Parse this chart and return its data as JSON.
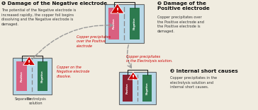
{
  "bg_color": "#f0ece0",
  "title1": "❶ Damage of the Negative electrode",
  "desc1": "The potential of the Negative electrode is\nincreased rapidly, the copper foil begins\ndissolving and the Negative electrode is\ndamaged.",
  "title2": "❷ Damage of the\nPositive electrode",
  "desc2": "Copper precipitates over\nthe Positive electrode and\nthe Positive electrode is\ndamaged.",
  "title3": "❸ Internal short causes",
  "desc3": "Copper precipitates in the\nelectrolysis solution and\ninternal short causes.",
  "ann1": "Copper on the\nNegative electrode\ndissolve.",
  "ann2": "Copper precipitates\nover the Positive\nelectrode",
  "ann3": "Copper precipitates\nin the Electrolysis solution.",
  "label_sep": "Separator",
  "label_elec": "Electrolysis\nsolution",
  "red": "#cc0000",
  "pink": "#d96080",
  "green": "#2d7a4f",
  "light_blue": "#b8d8e8",
  "dark_red": "#8b2030",
  "title_color": "#111111",
  "ann_color": "#cc0000",
  "body_color": "#333333",
  "wire_color": "#222222",
  "sep_color": "#888888",
  "cell_border": "#666666"
}
